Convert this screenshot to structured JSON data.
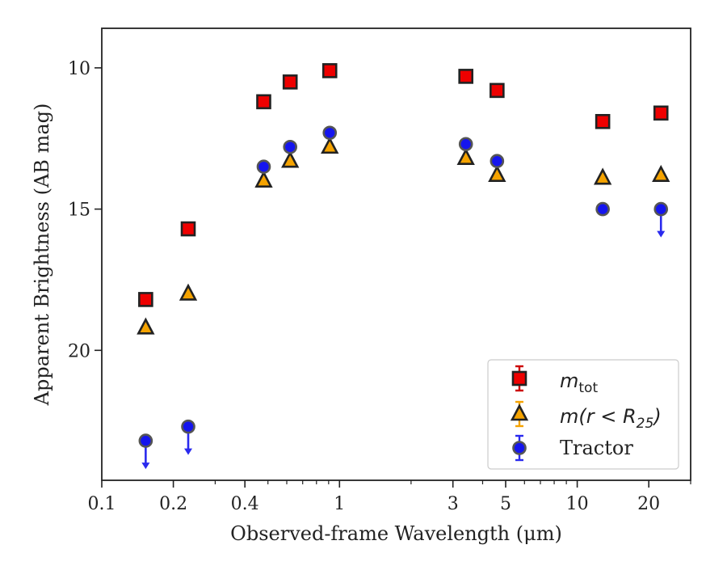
{
  "chart_data": {
    "type": "scatter",
    "xlabel": "Observed-frame Wavelength (μm)",
    "ylabel": "Apparent Brightness (AB mag)",
    "x_scale": "log",
    "xlim": [
      0.1,
      30
    ],
    "ylim": [
      24.6,
      8.6
    ],
    "y_inverted": true,
    "x_ticks": [
      0.1,
      0.2,
      0.4,
      1,
      3,
      5,
      10,
      20
    ],
    "x_tick_labels": [
      "0.1",
      "0.2",
      "0.4",
      "1",
      "3",
      "5",
      "10",
      "20"
    ],
    "y_ticks": [
      10,
      15,
      20
    ],
    "y_tick_labels": [
      "10",
      "15",
      "20"
    ],
    "grid": false,
    "legend_position": "bottom-right",
    "series": [
      {
        "name": "m_tot",
        "marker": "square",
        "color": "#ee0000",
        "edge_color": "#222222",
        "errorbar_color": "#cc0000",
        "points": [
          {
            "x": 0.153,
            "y": 18.2
          },
          {
            "x": 0.231,
            "y": 15.7
          },
          {
            "x": 0.48,
            "y": 11.2
          },
          {
            "x": 0.62,
            "y": 10.5
          },
          {
            "x": 0.91,
            "y": 10.1
          },
          {
            "x": 3.4,
            "y": 10.3
          },
          {
            "x": 4.6,
            "y": 10.8
          },
          {
            "x": 12.8,
            "y": 11.9
          },
          {
            "x": 22.5,
            "y": 11.6
          }
        ]
      },
      {
        "name": "m(r<R25)",
        "marker": "triangle",
        "color": "#f5a300",
        "edge_color": "#222222",
        "errorbar_color": "#f5a300",
        "points": [
          {
            "x": 0.153,
            "y": 19.2
          },
          {
            "x": 0.231,
            "y": 18.0
          },
          {
            "x": 0.48,
            "y": 14.0
          },
          {
            "x": 0.62,
            "y": 13.3
          },
          {
            "x": 0.91,
            "y": 12.8
          },
          {
            "x": 3.4,
            "y": 13.2
          },
          {
            "x": 4.6,
            "y": 13.8
          },
          {
            "x": 12.8,
            "y": 13.9
          },
          {
            "x": 22.5,
            "y": 13.8
          }
        ]
      },
      {
        "name": "Tractor",
        "marker": "circle",
        "color": "#1515ee",
        "edge_color": "#555555",
        "errorbar_color": "#2a2aee",
        "points": [
          {
            "x": 0.153,
            "y": 23.2,
            "upper_limit": true
          },
          {
            "x": 0.231,
            "y": 22.7,
            "upper_limit": true
          },
          {
            "x": 0.48,
            "y": 13.5
          },
          {
            "x": 0.62,
            "y": 12.8
          },
          {
            "x": 0.91,
            "y": 12.3
          },
          {
            "x": 3.4,
            "y": 12.7
          },
          {
            "x": 4.6,
            "y": 13.3
          },
          {
            "x": 12.8,
            "y": 15.0
          },
          {
            "x": 22.5,
            "y": 15.0,
            "upper_limit": true
          }
        ]
      }
    ],
    "legend": {
      "entries": [
        {
          "base": "m",
          "sub": "tot"
        },
        {
          "base": "m",
          "middle": "(r < R",
          "sub": "25",
          "tail": ")"
        },
        {
          "text": "Tractor"
        }
      ]
    }
  }
}
